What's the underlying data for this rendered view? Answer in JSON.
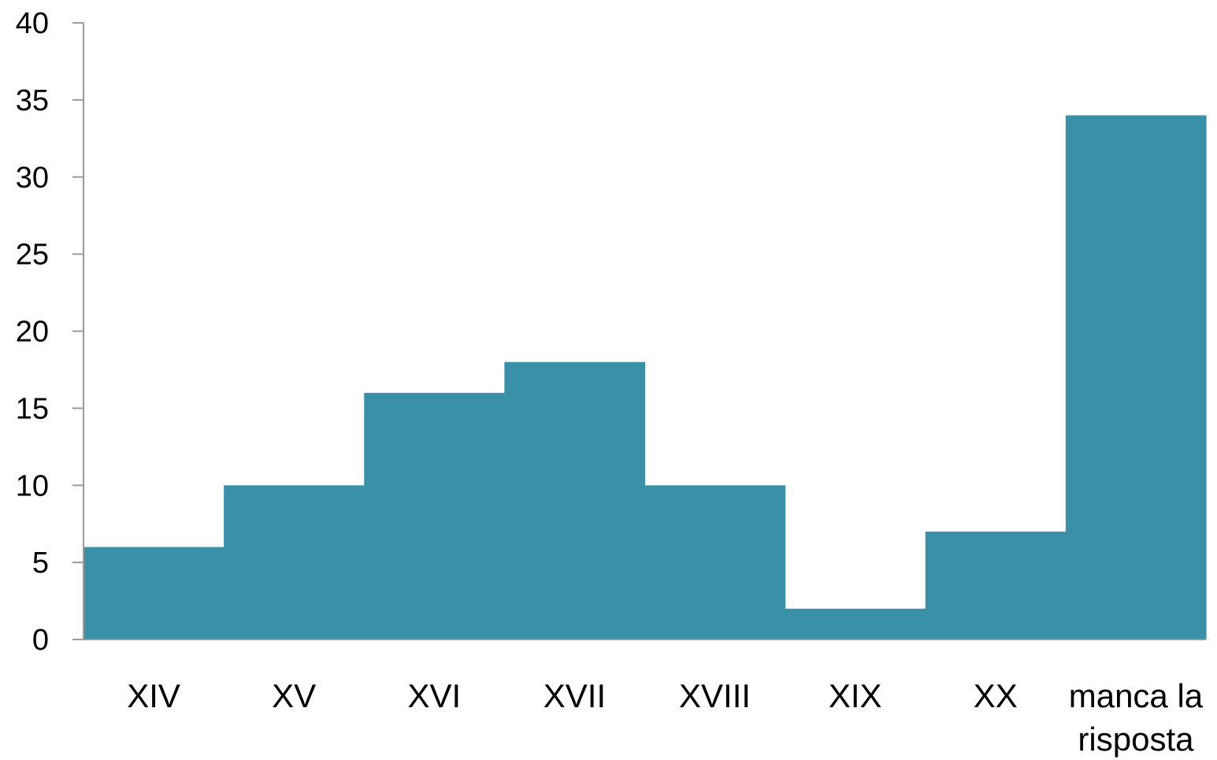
{
  "chart_data": {
    "type": "bar",
    "categories": [
      "XIV",
      "XV",
      "XVI",
      "XVII",
      "XVIII",
      "XIX",
      "XX",
      "manca la risposta"
    ],
    "values": [
      6,
      10,
      16,
      18,
      10,
      2,
      7,
      34
    ],
    "yticks": [
      "0",
      "5",
      "10",
      "15",
      "20",
      "25",
      "30",
      "35",
      "40"
    ],
    "ylim": [
      0,
      40
    ],
    "bar_color": "#3a91a7",
    "grid": false,
    "legend": "none"
  }
}
